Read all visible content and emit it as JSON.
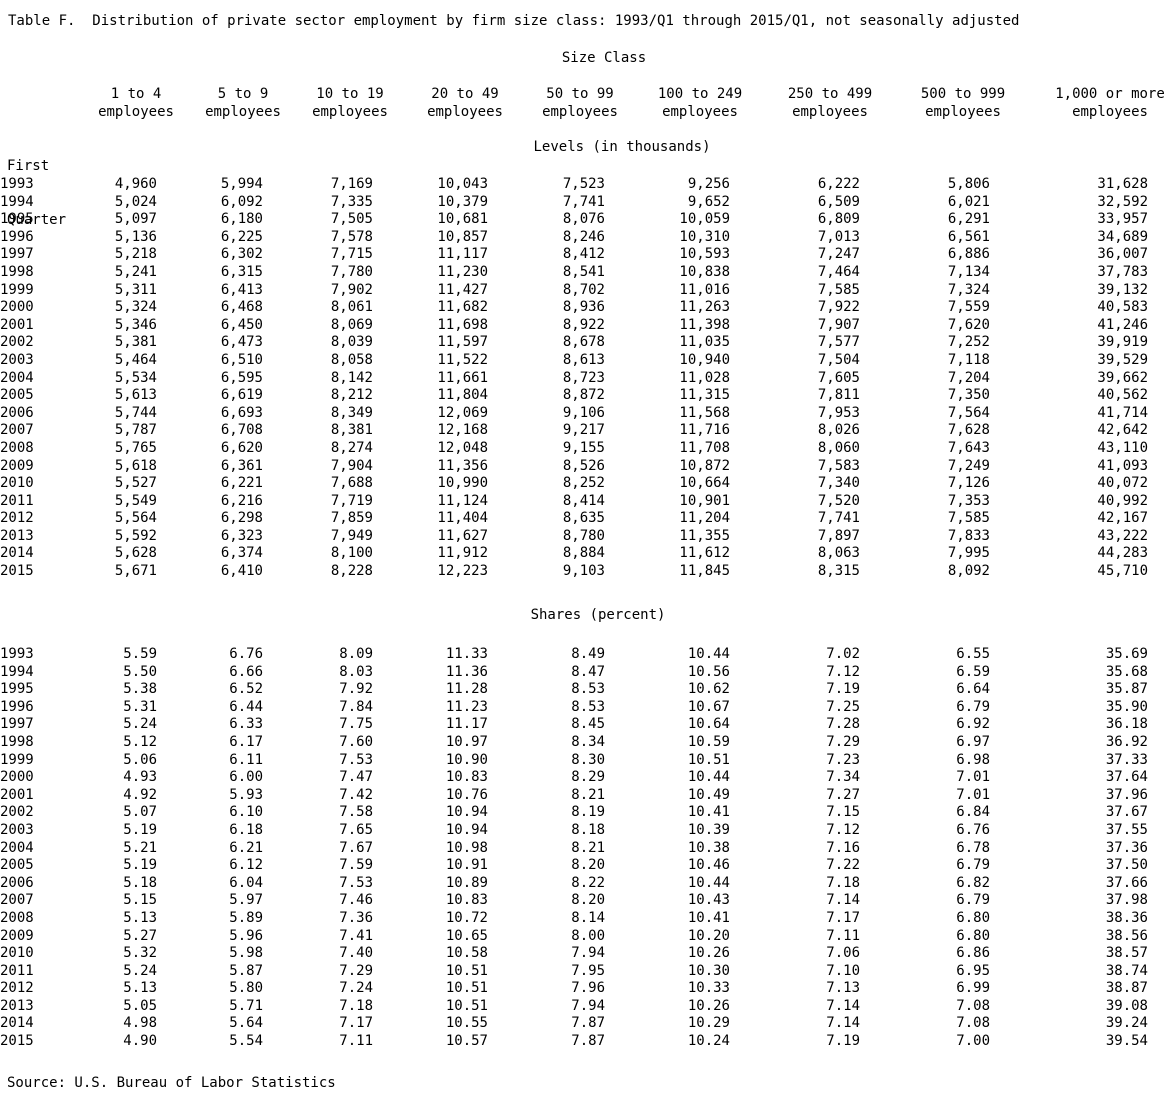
{
  "title": "Table F.  Distribution of private sector employment by firm size class: 1993/Q1 through 2015/Q1, not seasonally adjusted",
  "size_class_label": "Size Class",
  "row_header": {
    "line1": "First",
    "line2": "Quarter"
  },
  "columns": [
    {
      "line1": "1 to 4",
      "line2": "employees"
    },
    {
      "line1": "5 to 9",
      "line2": "employees"
    },
    {
      "line1": "10 to 19",
      "line2": "employees"
    },
    {
      "line1": "20 to 49",
      "line2": "employees"
    },
    {
      "line1": "50 to 99",
      "line2": "employees"
    },
    {
      "line1": "100 to 249",
      "line2": "employees"
    },
    {
      "line1": "250 to 499",
      "line2": "employees"
    },
    {
      "line1": "500 to 999",
      "line2": "employees"
    },
    {
      "line1": "1,000 or more",
      "line2": "employees"
    }
  ],
  "levels": {
    "label": "Levels (in thousands)",
    "rows": [
      {
        "year": "1993",
        "values": [
          "4,960",
          "5,994",
          "7,169",
          "10,043",
          "7,523",
          "9,256",
          "6,222",
          "5,806",
          "31,628"
        ]
      },
      {
        "year": "1994",
        "values": [
          "5,024",
          "6,092",
          "7,335",
          "10,379",
          "7,741",
          "9,652",
          "6,509",
          "6,021",
          "32,592"
        ]
      },
      {
        "year": "1995",
        "values": [
          "5,097",
          "6,180",
          "7,505",
          "10,681",
          "8,076",
          "10,059",
          "6,809",
          "6,291",
          "33,957"
        ]
      },
      {
        "year": "1996",
        "values": [
          "5,136",
          "6,225",
          "7,578",
          "10,857",
          "8,246",
          "10,310",
          "7,013",
          "6,561",
          "34,689"
        ]
      },
      {
        "year": "1997",
        "values": [
          "5,218",
          "6,302",
          "7,715",
          "11,117",
          "8,412",
          "10,593",
          "7,247",
          "6,886",
          "36,007"
        ]
      },
      {
        "year": "1998",
        "values": [
          "5,241",
          "6,315",
          "7,780",
          "11,230",
          "8,541",
          "10,838",
          "7,464",
          "7,134",
          "37,783"
        ]
      },
      {
        "year": "1999",
        "values": [
          "5,311",
          "6,413",
          "7,902",
          "11,427",
          "8,702",
          "11,016",
          "7,585",
          "7,324",
          "39,132"
        ]
      },
      {
        "year": "2000",
        "values": [
          "5,324",
          "6,468",
          "8,061",
          "11,682",
          "8,936",
          "11,263",
          "7,922",
          "7,559",
          "40,583"
        ]
      },
      {
        "year": "2001",
        "values": [
          "5,346",
          "6,450",
          "8,069",
          "11,698",
          "8,922",
          "11,398",
          "7,907",
          "7,620",
          "41,246"
        ]
      },
      {
        "year": "2002",
        "values": [
          "5,381",
          "6,473",
          "8,039",
          "11,597",
          "8,678",
          "11,035",
          "7,577",
          "7,252",
          "39,919"
        ]
      },
      {
        "year": "2003",
        "values": [
          "5,464",
          "6,510",
          "8,058",
          "11,522",
          "8,613",
          "10,940",
          "7,504",
          "7,118",
          "39,529"
        ]
      },
      {
        "year": "2004",
        "values": [
          "5,534",
          "6,595",
          "8,142",
          "11,661",
          "8,723",
          "11,028",
          "7,605",
          "7,204",
          "39,662"
        ]
      },
      {
        "year": "2005",
        "values": [
          "5,613",
          "6,619",
          "8,212",
          "11,804",
          "8,872",
          "11,315",
          "7,811",
          "7,350",
          "40,562"
        ]
      },
      {
        "year": "2006",
        "values": [
          "5,744",
          "6,693",
          "8,349",
          "12,069",
          "9,106",
          "11,568",
          "7,953",
          "7,564",
          "41,714"
        ]
      },
      {
        "year": "2007",
        "values": [
          "5,787",
          "6,708",
          "8,381",
          "12,168",
          "9,217",
          "11,716",
          "8,026",
          "7,628",
          "42,642"
        ]
      },
      {
        "year": "2008",
        "values": [
          "5,765",
          "6,620",
          "8,274",
          "12,048",
          "9,155",
          "11,708",
          "8,060",
          "7,643",
          "43,110"
        ]
      },
      {
        "year": "2009",
        "values": [
          "5,618",
          "6,361",
          "7,904",
          "11,356",
          "8,526",
          "10,872",
          "7,583",
          "7,249",
          "41,093"
        ]
      },
      {
        "year": "2010",
        "values": [
          "5,527",
          "6,221",
          "7,688",
          "10,990",
          "8,252",
          "10,664",
          "7,340",
          "7,126",
          "40,072"
        ]
      },
      {
        "year": "2011",
        "values": [
          "5,549",
          "6,216",
          "7,719",
          "11,124",
          "8,414",
          "10,901",
          "7,520",
          "7,353",
          "40,992"
        ]
      },
      {
        "year": "2012",
        "values": [
          "5,564",
          "6,298",
          "7,859",
          "11,404",
          "8,635",
          "11,204",
          "7,741",
          "7,585",
          "42,167"
        ]
      },
      {
        "year": "2013",
        "values": [
          "5,592",
          "6,323",
          "7,949",
          "11,627",
          "8,780",
          "11,355",
          "7,897",
          "7,833",
          "43,222"
        ]
      },
      {
        "year": "2014",
        "values": [
          "5,628",
          "6,374",
          "8,100",
          "11,912",
          "8,884",
          "11,612",
          "8,063",
          "7,995",
          "44,283"
        ]
      },
      {
        "year": "2015",
        "values": [
          "5,671",
          "6,410",
          "8,228",
          "12,223",
          "9,103",
          "11,845",
          "8,315",
          "8,092",
          "45,710"
        ]
      }
    ]
  },
  "shares": {
    "label": "Shares (percent)",
    "rows": [
      {
        "year": "1993",
        "values": [
          "5.59",
          "6.76",
          "8.09",
          "11.33",
          "8.49",
          "10.44",
          "7.02",
          "6.55",
          "35.69"
        ]
      },
      {
        "year": "1994",
        "values": [
          "5.50",
          "6.66",
          "8.03",
          "11.36",
          "8.47",
          "10.56",
          "7.12",
          "6.59",
          "35.68"
        ]
      },
      {
        "year": "1995",
        "values": [
          "5.38",
          "6.52",
          "7.92",
          "11.28",
          "8.53",
          "10.62",
          "7.19",
          "6.64",
          "35.87"
        ]
      },
      {
        "year": "1996",
        "values": [
          "5.31",
          "6.44",
          "7.84",
          "11.23",
          "8.53",
          "10.67",
          "7.25",
          "6.79",
          "35.90"
        ]
      },
      {
        "year": "1997",
        "values": [
          "5.24",
          "6.33",
          "7.75",
          "11.17",
          "8.45",
          "10.64",
          "7.28",
          "6.92",
          "36.18"
        ]
      },
      {
        "year": "1998",
        "values": [
          "5.12",
          "6.17",
          "7.60",
          "10.97",
          "8.34",
          "10.59",
          "7.29",
          "6.97",
          "36.92"
        ]
      },
      {
        "year": "1999",
        "values": [
          "5.06",
          "6.11",
          "7.53",
          "10.90",
          "8.30",
          "10.51",
          "7.23",
          "6.98",
          "37.33"
        ]
      },
      {
        "year": "2000",
        "values": [
          "4.93",
          "6.00",
          "7.47",
          "10.83",
          "8.29",
          "10.44",
          "7.34",
          "7.01",
          "37.64"
        ]
      },
      {
        "year": "2001",
        "values": [
          "4.92",
          "5.93",
          "7.42",
          "10.76",
          "8.21",
          "10.49",
          "7.27",
          "7.01",
          "37.96"
        ]
      },
      {
        "year": "2002",
        "values": [
          "5.07",
          "6.10",
          "7.58",
          "10.94",
          "8.19",
          "10.41",
          "7.15",
          "6.84",
          "37.67"
        ]
      },
      {
        "year": "2003",
        "values": [
          "5.19",
          "6.18",
          "7.65",
          "10.94",
          "8.18",
          "10.39",
          "7.12",
          "6.76",
          "37.55"
        ]
      },
      {
        "year": "2004",
        "values": [
          "5.21",
          "6.21",
          "7.67",
          "10.98",
          "8.21",
          "10.38",
          "7.16",
          "6.78",
          "37.36"
        ]
      },
      {
        "year": "2005",
        "values": [
          "5.19",
          "6.12",
          "7.59",
          "10.91",
          "8.20",
          "10.46",
          "7.22",
          "6.79",
          "37.50"
        ]
      },
      {
        "year": "2006",
        "values": [
          "5.18",
          "6.04",
          "7.53",
          "10.89",
          "8.22",
          "10.44",
          "7.18",
          "6.82",
          "37.66"
        ]
      },
      {
        "year": "2007",
        "values": [
          "5.15",
          "5.97",
          "7.46",
          "10.83",
          "8.20",
          "10.43",
          "7.14",
          "6.79",
          "37.98"
        ]
      },
      {
        "year": "2008",
        "values": [
          "5.13",
          "5.89",
          "7.36",
          "10.72",
          "8.14",
          "10.41",
          "7.17",
          "6.80",
          "38.36"
        ]
      },
      {
        "year": "2009",
        "values": [
          "5.27",
          "5.96",
          "7.41",
          "10.65",
          "8.00",
          "10.20",
          "7.11",
          "6.80",
          "38.56"
        ]
      },
      {
        "year": "2010",
        "values": [
          "5.32",
          "5.98",
          "7.40",
          "10.58",
          "7.94",
          "10.26",
          "7.06",
          "6.86",
          "38.57"
        ]
      },
      {
        "year": "2011",
        "values": [
          "5.24",
          "5.87",
          "7.29",
          "10.51",
          "7.95",
          "10.30",
          "7.10",
          "6.95",
          "38.74"
        ]
      },
      {
        "year": "2012",
        "values": [
          "5.13",
          "5.80",
          "7.24",
          "10.51",
          "7.96",
          "10.33",
          "7.13",
          "6.99",
          "38.87"
        ]
      },
      {
        "year": "2013",
        "values": [
          "5.05",
          "5.71",
          "7.18",
          "10.51",
          "7.94",
          "10.26",
          "7.14",
          "7.08",
          "39.08"
        ]
      },
      {
        "year": "2014",
        "values": [
          "4.98",
          "5.64",
          "7.17",
          "10.55",
          "7.87",
          "10.29",
          "7.14",
          "7.08",
          "39.24"
        ]
      },
      {
        "year": "2015",
        "values": [
          "4.90",
          "5.54",
          "7.11",
          "10.57",
          "7.87",
          "10.24",
          "7.19",
          "7.00",
          "39.54"
        ]
      }
    ]
  },
  "source": "Source: U.S. Bureau of Labor Statistics"
}
